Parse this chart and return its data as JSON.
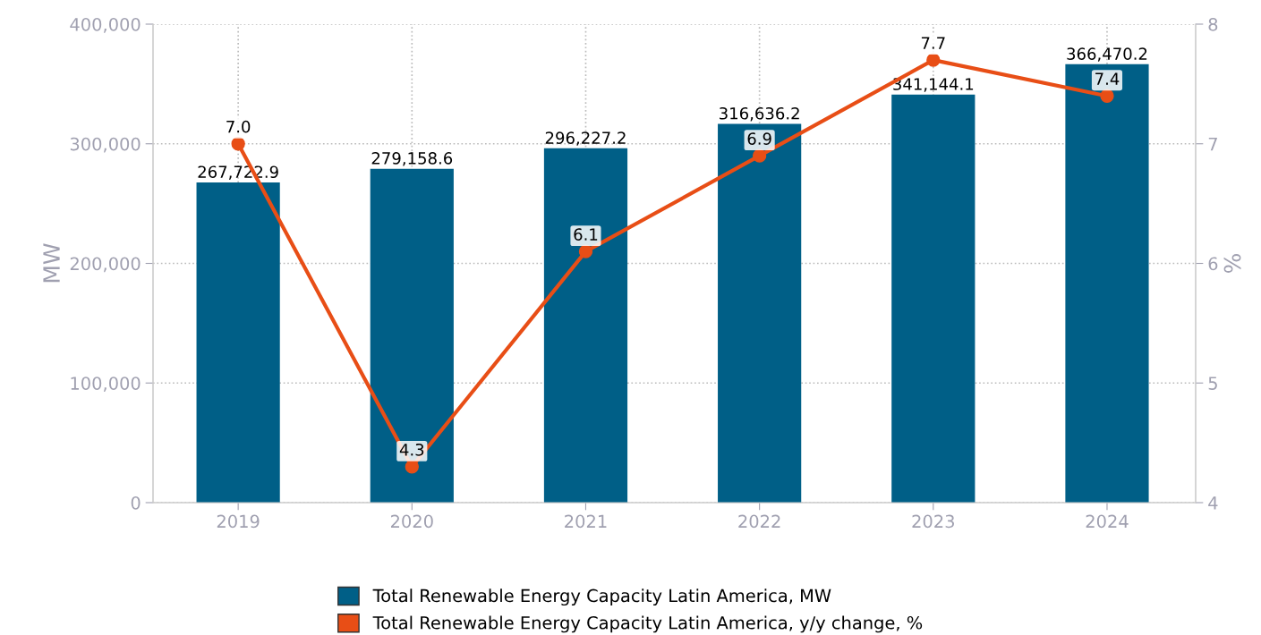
{
  "chart_data": {
    "type": "bar",
    "categories": [
      "2019",
      "2020",
      "2021",
      "2022",
      "2023",
      "2024"
    ],
    "ylabel": "MW",
    "y2label": "%",
    "ylim": [
      0,
      400000
    ],
    "yticks": [
      0,
      {
        "value": 100000,
        "label": "100,000"
      },
      {
        "value": 200000,
        "label": "200,000"
      },
      {
        "value": 300000,
        "label": "300,000"
      },
      {
        "value": 400000,
        "label": "400,000"
      }
    ],
    "y2lim": [
      4,
      8
    ],
    "y2ticks": [
      4,
      5,
      6,
      7,
      8
    ],
    "grid": true,
    "legend": "bottom",
    "marker": "circle",
    "line_style": "solid",
    "series": [
      {
        "name": "Total Renewable Energy Capacity Latin America, MW",
        "color": "#005f87",
        "values": [
          267722.9,
          279158.6,
          296227.2,
          316636.2,
          341144.1,
          366470.2
        ],
        "value_labels": [
          "267,722.9",
          "279,158.6",
          "296,227.2",
          "316,636.2",
          "341,144.1",
          "366,470.2"
        ]
      },
      {
        "name": "Total Renewable Energy Capacity Latin America, y/y change, %",
        "type": "line",
        "axis": "y2",
        "color": "#e84e16",
        "values": [
          7.0,
          4.3,
          6.1,
          6.9,
          7.7,
          7.4
        ],
        "value_labels": [
          "7.0",
          "4.3",
          "6.1",
          "6.9",
          "7.7",
          "7.4"
        ]
      }
    ]
  }
}
